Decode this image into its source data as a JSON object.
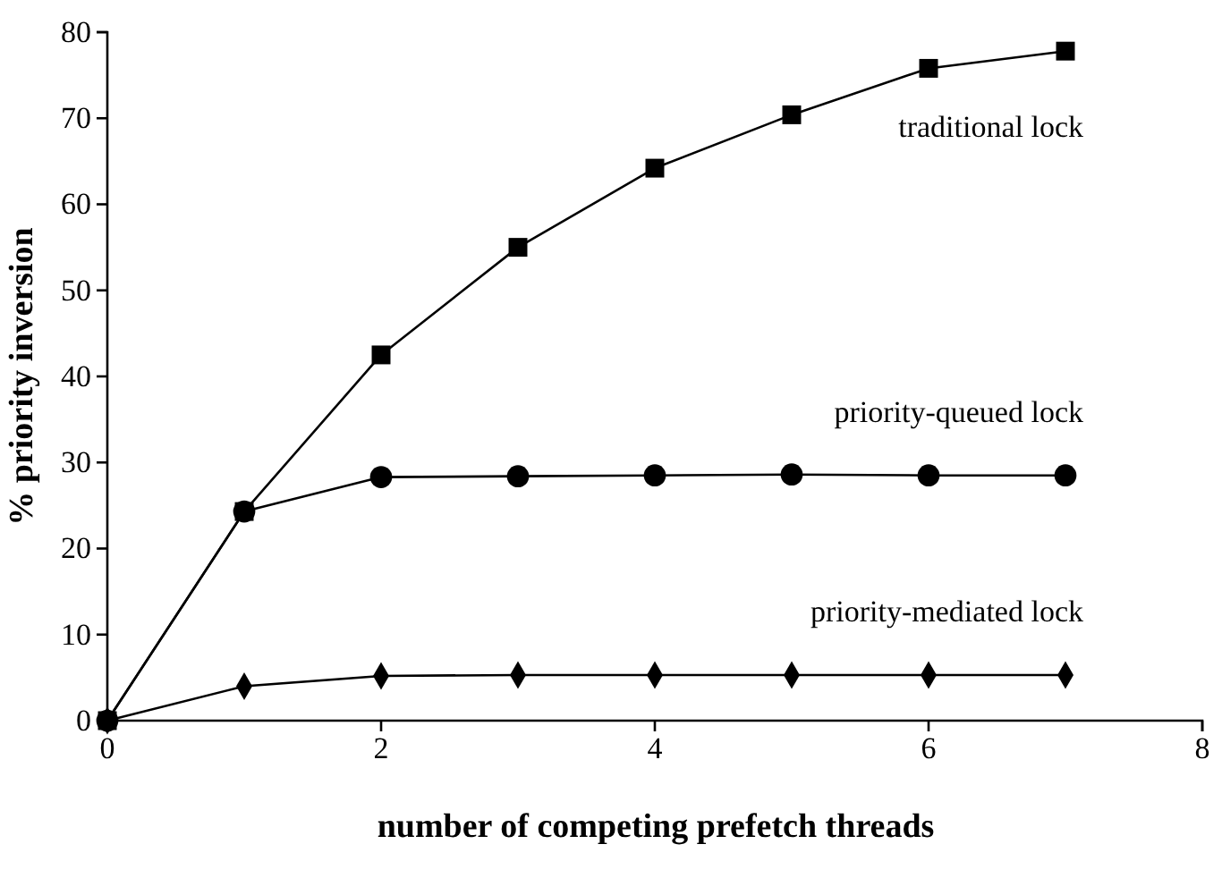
{
  "chart_data": {
    "type": "line",
    "xlabel": "number of competing prefetch threads",
    "ylabel": "% priority inversion",
    "x": [
      0,
      1,
      2,
      3,
      4,
      5,
      6,
      7
    ],
    "xlim": [
      0,
      8
    ],
    "xticks": [
      0,
      2,
      4,
      6,
      8
    ],
    "ylim": [
      0,
      80
    ],
    "yticks": [
      0,
      10,
      20,
      30,
      40,
      50,
      60,
      70,
      80
    ],
    "grid": false,
    "legend": false,
    "line_style": "solid",
    "series": [
      {
        "name": "traditional lock",
        "color": "#000000",
        "marker": "square",
        "values": [
          0,
          24.3,
          42.5,
          55,
          64.2,
          70.4,
          75.8,
          77.8
        ]
      },
      {
        "name": "priority-queued lock",
        "color": "#000000",
        "marker": "circle",
        "values": [
          0,
          24.3,
          28.3,
          28.4,
          28.5,
          28.6,
          28.5,
          28.5
        ]
      },
      {
        "name": "priority-mediated lock",
        "color": "#000000",
        "marker": "diamond",
        "values": [
          0,
          4,
          5.2,
          5.3,
          5.3,
          5.3,
          5.3,
          5.3
        ]
      }
    ]
  }
}
